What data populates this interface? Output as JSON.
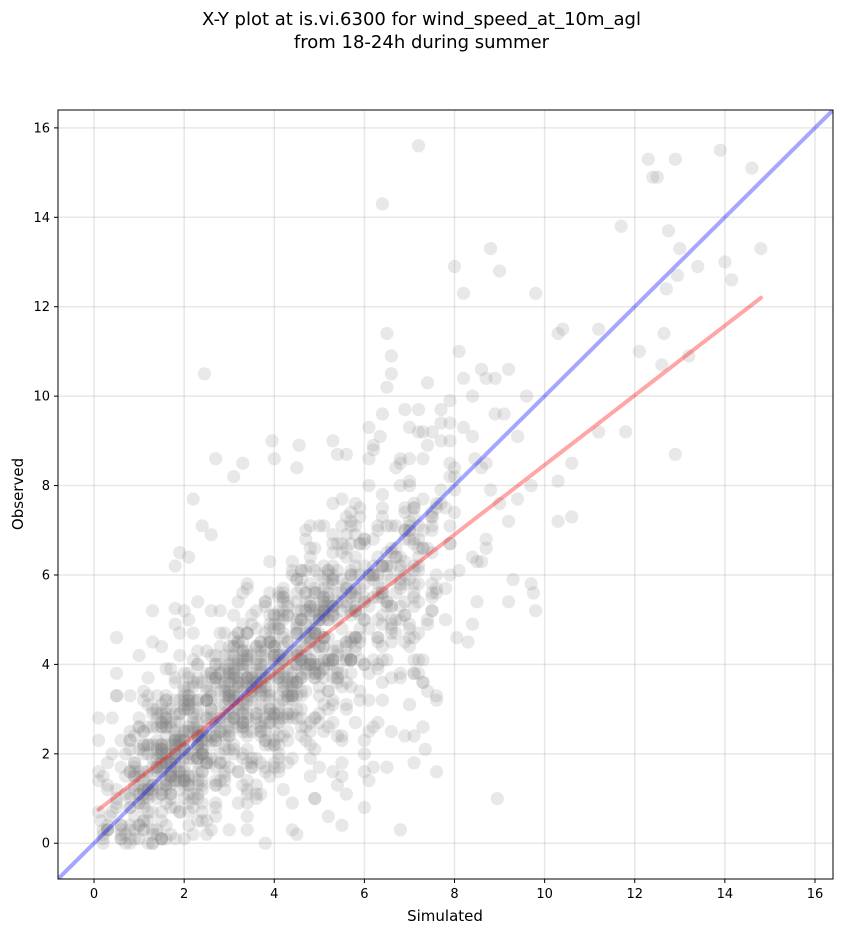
{
  "chart_data": {
    "type": "scatter",
    "title_lines": [
      "X-Y plot at is.vi.6300 for wind_speed_at_10m_agl",
      "from 18-24h during summer"
    ],
    "xlabel": "Simulated",
    "ylabel": "Observed",
    "xlim": [
      -0.8,
      16.4
    ],
    "ylim": [
      -0.8,
      16.4
    ],
    "xticks": [
      0,
      2,
      4,
      6,
      8,
      10,
      12,
      14,
      16
    ],
    "yticks": [
      0,
      2,
      4,
      6,
      8,
      10,
      12,
      14,
      16
    ],
    "grid": true,
    "point_color": "#808080",
    "point_opacity": 0.18,
    "identity_line": {
      "color": "#0000ff",
      "opacity": 0.35,
      "x": [
        -0.8,
        16.4
      ],
      "y": [
        -0.8,
        16.4
      ]
    },
    "regression_line": {
      "color": "#ff0000",
      "opacity": 0.35,
      "x": [
        0.1,
        14.8
      ],
      "y": [
        0.75,
        12.2
      ]
    },
    "points": [
      [
        0.5,
        4.6
      ],
      [
        2.45,
        10.5
      ],
      [
        2.7,
        8.6
      ],
      [
        6.4,
        14.3
      ],
      [
        7.2,
        15.6
      ],
      [
        6.5,
        11.4
      ],
      [
        6.6,
        10.9
      ],
      [
        8.0,
        12.9
      ],
      [
        8.8,
        13.3
      ],
      [
        9.0,
        12.8
      ],
      [
        9.8,
        12.3
      ],
      [
        10.3,
        11.4
      ],
      [
        10.4,
        11.5
      ],
      [
        11.2,
        11.5
      ],
      [
        11.7,
        13.8
      ],
      [
        12.1,
        11.0
      ],
      [
        12.3,
        15.3
      ],
      [
        12.4,
        14.9
      ],
      [
        12.5,
        14.9
      ],
      [
        12.9,
        15.3
      ],
      [
        12.75,
        13.7
      ],
      [
        13.0,
        13.3
      ],
      [
        12.7,
        12.4
      ],
      [
        12.95,
        12.7
      ],
      [
        13.4,
        12.9
      ],
      [
        13.9,
        15.5
      ],
      [
        14.0,
        13.0
      ],
      [
        14.15,
        12.6
      ],
      [
        14.6,
        15.1
      ],
      [
        14.8,
        13.3
      ],
      [
        12.6,
        10.7
      ],
      [
        12.65,
        11.4
      ],
      [
        13.2,
        10.9
      ],
      [
        12.9,
        8.7
      ],
      [
        11.2,
        9.2
      ],
      [
        11.8,
        9.2
      ],
      [
        10.3,
        8.1
      ],
      [
        10.6,
        8.5
      ],
      [
        10.3,
        7.2
      ],
      [
        10.6,
        7.3
      ],
      [
        9.7,
        5.8
      ],
      [
        9.75,
        5.6
      ],
      [
        9.8,
        5.2
      ],
      [
        9.2,
        5.4
      ],
      [
        9.3,
        5.9
      ],
      [
        8.95,
        1.0
      ],
      [
        6.8,
        0.3
      ],
      [
        7.6,
        1.6
      ],
      [
        7.35,
        2.1
      ],
      [
        6.6,
        2.5
      ],
      [
        9.6,
        10.0
      ],
      [
        9.2,
        10.6
      ],
      [
        8.9,
        10.4
      ],
      [
        8.2,
        10.4
      ],
      [
        8.1,
        11.0
      ],
      [
        7.9,
        9.9
      ],
      [
        7.5,
        9.2
      ],
      [
        7.7,
        9.4
      ],
      [
        7.7,
        9.0
      ],
      [
        6.9,
        9.7
      ],
      [
        6.4,
        9.6
      ],
      [
        6.1,
        9.3
      ],
      [
        6.35,
        9.1
      ],
      [
        6.5,
        10.2
      ],
      [
        8.6,
        10.6
      ],
      [
        8.2,
        9.3
      ],
      [
        8.45,
        8.6
      ],
      [
        8.8,
        7.9
      ],
      [
        9.1,
        9.6
      ],
      [
        9.4,
        9.1
      ],
      [
        9.0,
        7.6
      ],
      [
        9.4,
        7.7
      ],
      [
        9.7,
        8.0
      ],
      [
        9.2,
        7.2
      ],
      [
        8.7,
        6.6
      ],
      [
        8.6,
        6.3
      ],
      [
        8.4,
        4.9
      ],
      [
        8.3,
        4.5
      ],
      [
        8.05,
        4.6
      ],
      [
        7.8,
        5.0
      ],
      [
        2.2,
        7.7
      ],
      [
        2.4,
        7.1
      ],
      [
        3.3,
        8.5
      ],
      [
        3.95,
        9.0
      ],
      [
        4.5,
        8.4
      ],
      [
        4.55,
        8.9
      ],
      [
        5.3,
        9.0
      ],
      [
        5.6,
        8.7
      ],
      [
        3.1,
        8.2
      ],
      [
        2.6,
        6.9
      ],
      [
        1.8,
        6.2
      ],
      [
        1.9,
        6.5
      ],
      [
        2.1,
        6.4
      ],
      [
        2.3,
        5.4
      ],
      [
        2.0,
        5.2
      ],
      [
        1.8,
        5.25
      ],
      [
        1.3,
        5.2
      ],
      [
        1.3,
        4.5
      ],
      [
        1.5,
        4.4
      ],
      [
        1.0,
        4.2
      ],
      [
        0.8,
        3.3
      ],
      [
        0.5,
        3.3
      ],
      [
        0.5,
        3.8
      ],
      [
        0.4,
        2.8
      ],
      [
        0.6,
        2.3
      ],
      [
        0.2,
        1.5
      ],
      [
        0.3,
        1.3
      ],
      [
        0.15,
        0.5
      ],
      [
        0.35,
        0.6
      ],
      [
        0.6,
        0.1
      ],
      [
        0.7,
        0.0
      ],
      [
        1.3,
        0.0
      ],
      [
        1.8,
        0.1
      ],
      [
        2.0,
        0.1
      ],
      [
        3.8,
        0.0
      ],
      [
        4.5,
        0.2
      ],
      [
        3.0,
        0.3
      ],
      [
        2.4,
        0.5
      ],
      [
        5.2,
        0.6
      ],
      [
        5.5,
        0.4
      ],
      [
        5.4,
        1.3
      ],
      [
        6.0,
        0.8
      ],
      [
        6.1,
        1.4
      ],
      [
        5.3,
        1.6
      ],
      [
        6.0,
        2.0
      ],
      [
        6.2,
        1.7
      ],
      [
        4.9,
        1.0
      ],
      [
        7.3,
        2.6
      ],
      [
        7.0,
        3.1
      ],
      [
        7.6,
        3.3
      ]
    ],
    "clusters": [
      {
        "cx": 1.7,
        "cy": 2.0,
        "sx": 0.75,
        "sy": 1.05,
        "n": 380,
        "r": 0.55
      },
      {
        "cx": 3.6,
        "cy": 3.3,
        "sx": 0.95,
        "sy": 1.35,
        "n": 460,
        "r": 0.55
      },
      {
        "cx": 5.3,
        "cy": 5.0,
        "sx": 1.05,
        "sy": 1.6,
        "n": 360,
        "r": 0.5
      },
      {
        "cx": 7.0,
        "cy": 6.1,
        "sx": 0.9,
        "sy": 1.7,
        "n": 150,
        "r": 0.4
      }
    ]
  }
}
